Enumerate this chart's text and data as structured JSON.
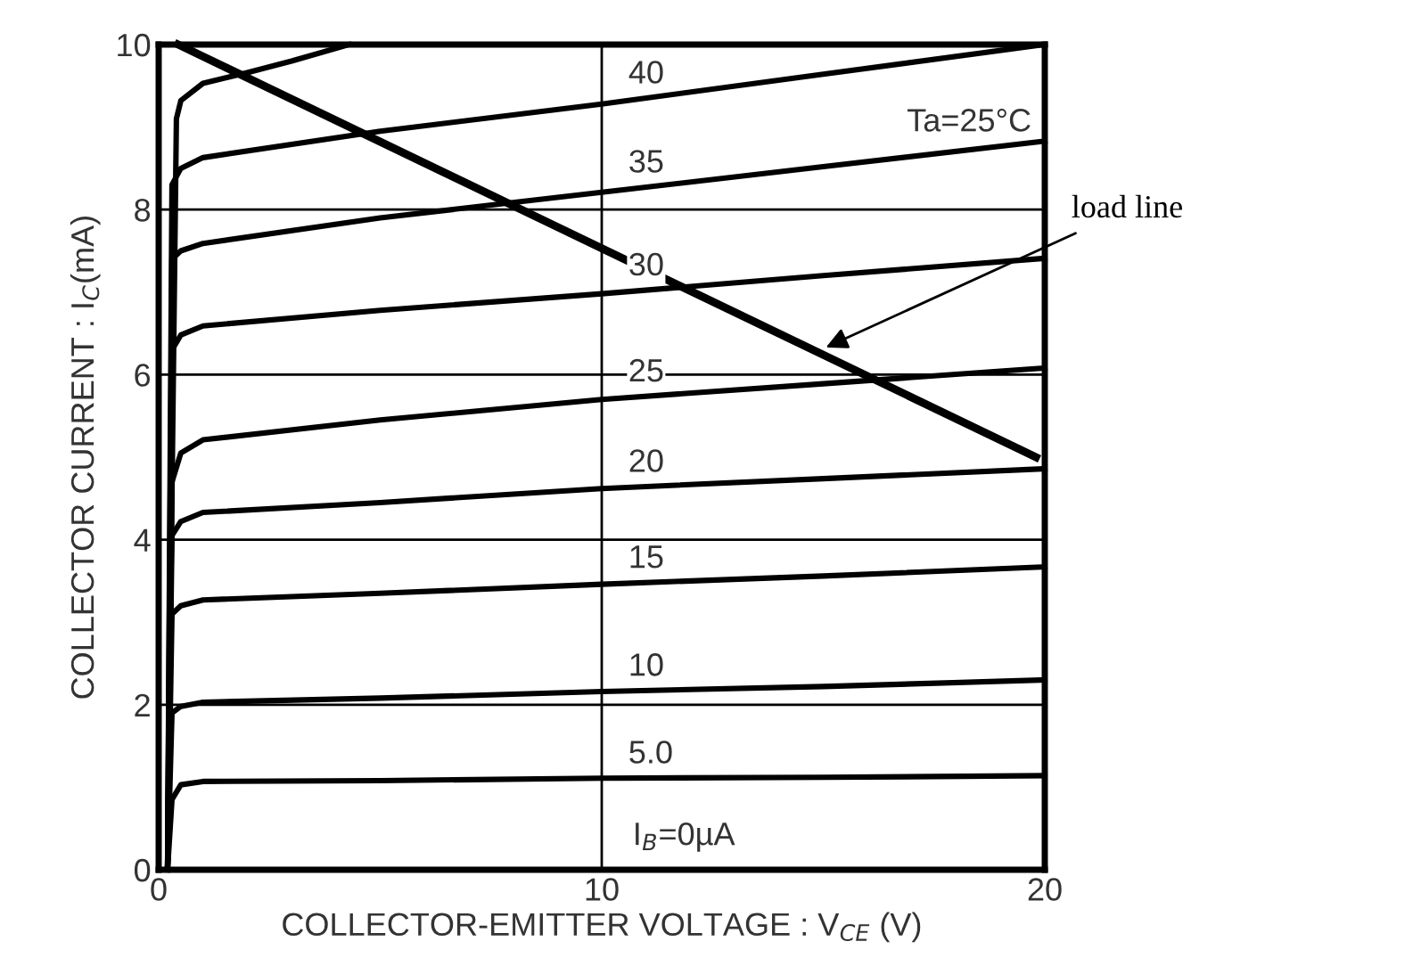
{
  "chart_data": {
    "type": "line",
    "xlabel": "COLLECTOR-EMITTER VOLTAGE : V$_{CE}$ (V)",
    "ylabel": "COLLECTOR CURRENT : I$_{C}$(mA)",
    "xlim": [
      0,
      20
    ],
    "ylim": [
      0,
      10
    ],
    "xticks": [
      0,
      10,
      20
    ],
    "yticks": [
      0,
      2,
      4,
      6,
      8,
      10
    ],
    "grid": true,
    "legend": false,
    "marker": "none",
    "line_style": "solid",
    "series": [
      {
        "name": "5.0",
        "color": "#000000",
        "x": [
          0.2,
          0.3,
          0.5,
          1,
          5,
          10,
          15,
          20
        ],
        "values": [
          0,
          0.85,
          1.03,
          1.07,
          1.08,
          1.11,
          1.12,
          1.14
        ]
      },
      {
        "name": "10",
        "color": "#000000",
        "x": [
          0.2,
          0.3,
          0.5,
          1,
          5,
          10,
          15,
          20
        ],
        "values": [
          0,
          1.9,
          1.98,
          2.03,
          2.08,
          2.16,
          2.22,
          2.3
        ]
      },
      {
        "name": "15",
        "color": "#000000",
        "x": [
          0.2,
          0.3,
          0.5,
          1,
          5,
          10,
          15,
          20
        ],
        "values": [
          0,
          3.1,
          3.2,
          3.27,
          3.35,
          3.46,
          3.56,
          3.67
        ]
      },
      {
        "name": "20",
        "color": "#000000",
        "x": [
          0.2,
          0.3,
          0.5,
          1,
          5,
          10,
          15,
          20
        ],
        "values": [
          0,
          4.05,
          4.22,
          4.33,
          4.45,
          4.62,
          4.74,
          4.86
        ]
      },
      {
        "name": "25",
        "color": "#000000",
        "x": [
          0.2,
          0.3,
          0.5,
          1,
          5,
          10,
          15,
          20
        ],
        "values": [
          0,
          4.7,
          5.05,
          5.21,
          5.45,
          5.7,
          5.89,
          6.08
        ]
      },
      {
        "name": "30",
        "color": "#000000",
        "x": [
          0.2,
          0.3,
          0.5,
          1,
          5,
          10,
          15,
          20
        ],
        "values": [
          0,
          6.3,
          6.48,
          6.59,
          6.78,
          6.98,
          7.2,
          7.41
        ]
      },
      {
        "name": "35",
        "color": "#000000",
        "x": [
          0.2,
          0.3,
          0.5,
          1,
          5,
          10,
          15,
          20
        ],
        "values": [
          0,
          7.4,
          7.5,
          7.59,
          7.9,
          8.21,
          8.52,
          8.83
        ]
      },
      {
        "name": "40",
        "color": "#000000",
        "x": [
          0.2,
          0.3,
          0.5,
          1,
          5,
          10,
          15,
          20
        ],
        "values": [
          0,
          8.3,
          8.5,
          8.63,
          8.95,
          9.28,
          9.64,
          10.0
        ]
      },
      {
        "color": "#000000",
        "x": [
          0.2,
          0.4,
          0.5,
          1,
          2,
          3,
          4.3
        ],
        "values": [
          0,
          9.1,
          9.32,
          9.53,
          9.66,
          9.8,
          10.0
        ]
      },
      {
        "color": "#000000",
        "x": [
          0.44,
          19.8
        ],
        "values": [
          10,
          5.0
        ]
      }
    ],
    "annotations": [
      "Ta=25°C",
      "I$_{B}$=0µA",
      {
        "text": "load line",
        "x": 15.06,
        "y": 6.33
      }
    ]
  }
}
